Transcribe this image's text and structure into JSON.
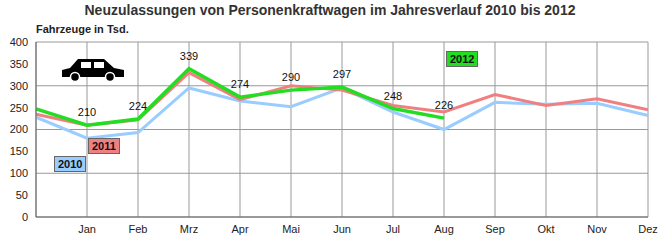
{
  "chart_data": {
    "type": "line",
    "title": "Neuzulassungen von Personenkraftwagen im Jahresverlauf 2010 bis 2012",
    "y_label": "Fahrzeuge in Tsd.",
    "categories": [
      null,
      "Jan",
      "Feb",
      "Mrz",
      "Apr",
      "Mai",
      "Jun",
      "Jul",
      "Aug",
      "Sep",
      "Okt",
      "Nov",
      "Dez"
    ],
    "series": [
      {
        "name": "2010",
        "color": "#99ccff",
        "values": [
          228,
          180,
          193,
          295,
          265,
          252,
          295,
          240,
          200,
          262,
          258,
          260,
          232
        ]
      },
      {
        "name": "2011",
        "color": "#f08080",
        "values": [
          235,
          210,
          222,
          330,
          268,
          300,
          290,
          255,
          240,
          280,
          255,
          270,
          245
        ]
      },
      {
        "name": "2012",
        "color": "#22dd22",
        "values": [
          247,
          210,
          224,
          339,
          274,
          290,
          297,
          248,
          226,
          null,
          null,
          null,
          null
        ],
        "value_labels": [
          null,
          "210",
          "224",
          "339",
          "274",
          "290",
          "297",
          "248",
          "226",
          null,
          null,
          null,
          null
        ]
      }
    ],
    "ylim": [
      0,
      400
    ],
    "yticks": [
      0,
      50,
      100,
      150,
      200,
      250,
      300,
      350,
      400
    ],
    "grid": true
  }
}
